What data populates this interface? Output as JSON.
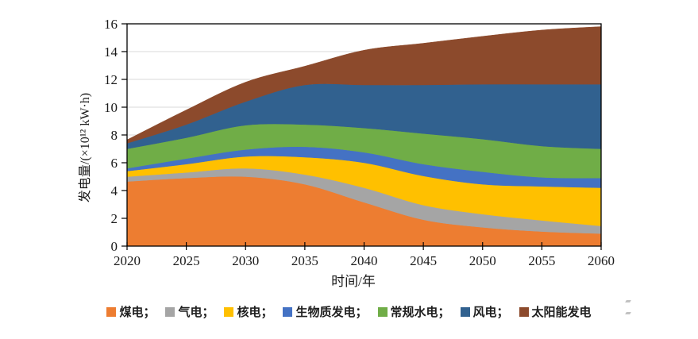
{
  "chart_data": {
    "type": "area",
    "stacked": true,
    "title": "",
    "xlabel": "时间/年",
    "ylabel": "发电量/(×10¹² kW·h)",
    "x": [
      2020,
      2025,
      2030,
      2035,
      2040,
      2045,
      2050,
      2055,
      2060
    ],
    "xlim": [
      2020,
      2060
    ],
    "ylim": [
      0,
      16
    ],
    "ytick_step": 2,
    "yticks": [
      0,
      2,
      4,
      6,
      8,
      10,
      12,
      14,
      16
    ],
    "grid": "horizontal",
    "grid_color": "#d9d9d9",
    "axis_color": "#000000",
    "plot_border": "full-box",
    "legend_position": "bottom",
    "series": [
      {
        "name": "煤电",
        "color": "#ED7D31",
        "values": [
          4.65,
          4.9,
          5.0,
          4.45,
          3.15,
          1.9,
          1.35,
          1.05,
          0.9
        ]
      },
      {
        "name": "气电",
        "color": "#A5A5A5",
        "values": [
          0.35,
          0.4,
          0.6,
          0.7,
          1.05,
          1.05,
          0.95,
          0.8,
          0.55
        ]
      },
      {
        "name": "核电",
        "color": "#FFC000",
        "values": [
          0.4,
          0.6,
          0.85,
          1.25,
          1.8,
          2.1,
          2.15,
          2.45,
          2.75
        ]
      },
      {
        "name": "生物质发电",
        "color": "#4472C4",
        "values": [
          0.2,
          0.4,
          0.5,
          0.75,
          0.75,
          0.85,
          0.9,
          0.65,
          0.7
        ]
      },
      {
        "name": "常规水电",
        "color": "#70AD47",
        "values": [
          1.4,
          1.5,
          1.75,
          1.6,
          1.75,
          2.2,
          2.35,
          2.25,
          2.1
        ]
      },
      {
        "name": "风电",
        "color": "#31618F",
        "values": [
          0.4,
          0.95,
          1.7,
          2.85,
          3.1,
          3.5,
          3.95,
          4.45,
          4.65
        ]
      },
      {
        "name": "太阳能发电",
        "color": "#8C4A2C",
        "values": [
          0.25,
          1.05,
          1.4,
          1.35,
          2.5,
          3.0,
          3.45,
          3.9,
          4.15
        ]
      }
    ],
    "totals": [
      7.65,
      9.8,
      11.8,
      12.95,
      14.1,
      14.6,
      15.1,
      15.55,
      15.8
    ]
  },
  "legend": {
    "items": [
      {
        "label": "煤电；",
        "color": "#ED7D31"
      },
      {
        "label": "气电；",
        "color": "#A5A5A5"
      },
      {
        "label": "核电；",
        "color": "#FFC000"
      },
      {
        "label": "生物质发电；",
        "color": "#4472C4"
      },
      {
        "label": "常规水电；",
        "color": "#70AD47"
      },
      {
        "label": "风电；",
        "color": "#31618F"
      },
      {
        "label": "太阳能发电",
        "color": "#8C4A2C"
      }
    ]
  },
  "axes": {
    "x_tick_labels": [
      "2020",
      "2025",
      "2030",
      "2035",
      "2040",
      "2045",
      "2050",
      "2055",
      "2060"
    ],
    "y_tick_labels": [
      "0",
      "2",
      "4",
      "6",
      "8",
      "10",
      "12",
      "14",
      "16"
    ],
    "x_title": "时间/年",
    "y_title": "发电量/(×10¹² kW·h)"
  }
}
